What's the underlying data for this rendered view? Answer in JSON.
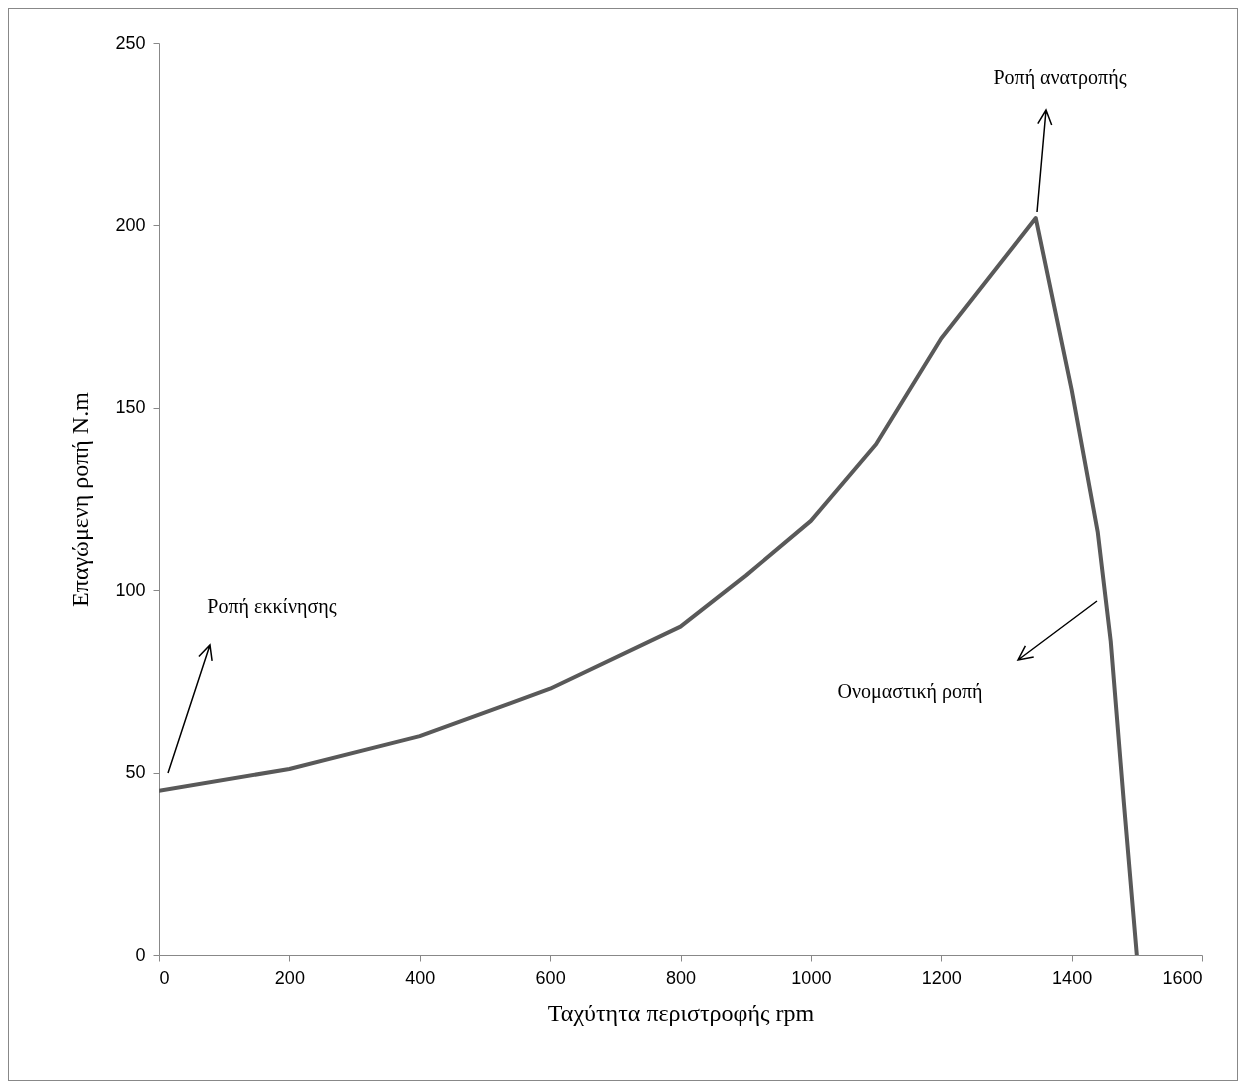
{
  "chart_data": {
    "type": "line",
    "xlabel": "Ταχύτητα περιστροφής rpm",
    "ylabel": "Επαγώμενη ροπή  N.m",
    "x": [
      0,
      200,
      400,
      600,
      800,
      900,
      1000,
      1100,
      1200,
      1345,
      1400,
      1440,
      1460,
      1480,
      1500
    ],
    "series": [
      {
        "color": "#595959",
        "values": [
          45,
          51,
          60,
          73,
          90,
          104,
          119,
          140,
          169,
          202,
          155,
          116,
          86,
          42,
          0
        ]
      }
    ],
    "xlim": [
      0,
      1600
    ],
    "xticks": [
      0,
      200,
      400,
      600,
      800,
      1000,
      1200,
      1400,
      1600
    ],
    "ylim": [
      0,
      250
    ],
    "yticks": [
      0,
      50,
      100,
      150,
      200,
      250
    ],
    "grid": false,
    "marker": "none",
    "line_style": "solid",
    "annotations": [
      "Ροπή εκκίνησης",
      "Ροπή ανατροπής",
      "Ονομαστική ροπή"
    ]
  }
}
